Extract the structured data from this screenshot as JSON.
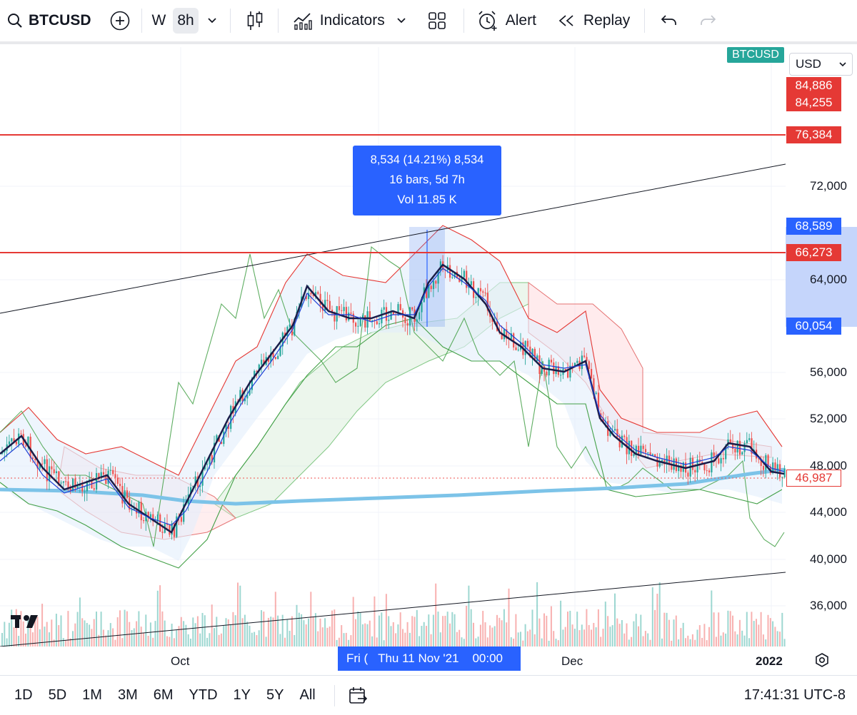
{
  "toolbar": {
    "symbol": "BTCUSD",
    "interval_w": "W",
    "interval_active": "8h",
    "indicators_label": "Indicators",
    "alert_label": "Alert",
    "replay_label": "Replay"
  },
  "chart": {
    "symbol_badge": "BTCUSD",
    "currency": "USD",
    "measure": {
      "line1": "8,534 (14.21%) 8,534",
      "line2": "16 bars, 5d 7h",
      "line3": "Vol 11.85 K"
    },
    "price_axis_labels": [
      "72,000",
      "64,000",
      "56,000",
      "52,000",
      "48,000",
      "44,000",
      "40,000",
      "36,000"
    ],
    "price_tags": {
      "high1": "84,886",
      "high2": "84,255",
      "level_upper": "76,384",
      "range_top": "68,589",
      "level_lower": "66,273",
      "range_bottom": "60,054",
      "last": "46,987"
    },
    "time_labels": {
      "oct": "Oct",
      "crosshair": "Fri (   Thu 11 Nov '21    00:00",
      "dec": "Dec",
      "year": "2022"
    },
    "colors": {
      "up": "#26a69a",
      "down": "#ef5350",
      "level": "#e53935",
      "measure": "#2962ff",
      "ma_slow": "#7cc3e8"
    }
  },
  "bottom": {
    "ranges": [
      "1D",
      "5D",
      "1M",
      "3M",
      "6M",
      "YTD",
      "1Y",
      "5Y",
      "All"
    ],
    "clock": "17:41:31 UTC-8"
  }
}
